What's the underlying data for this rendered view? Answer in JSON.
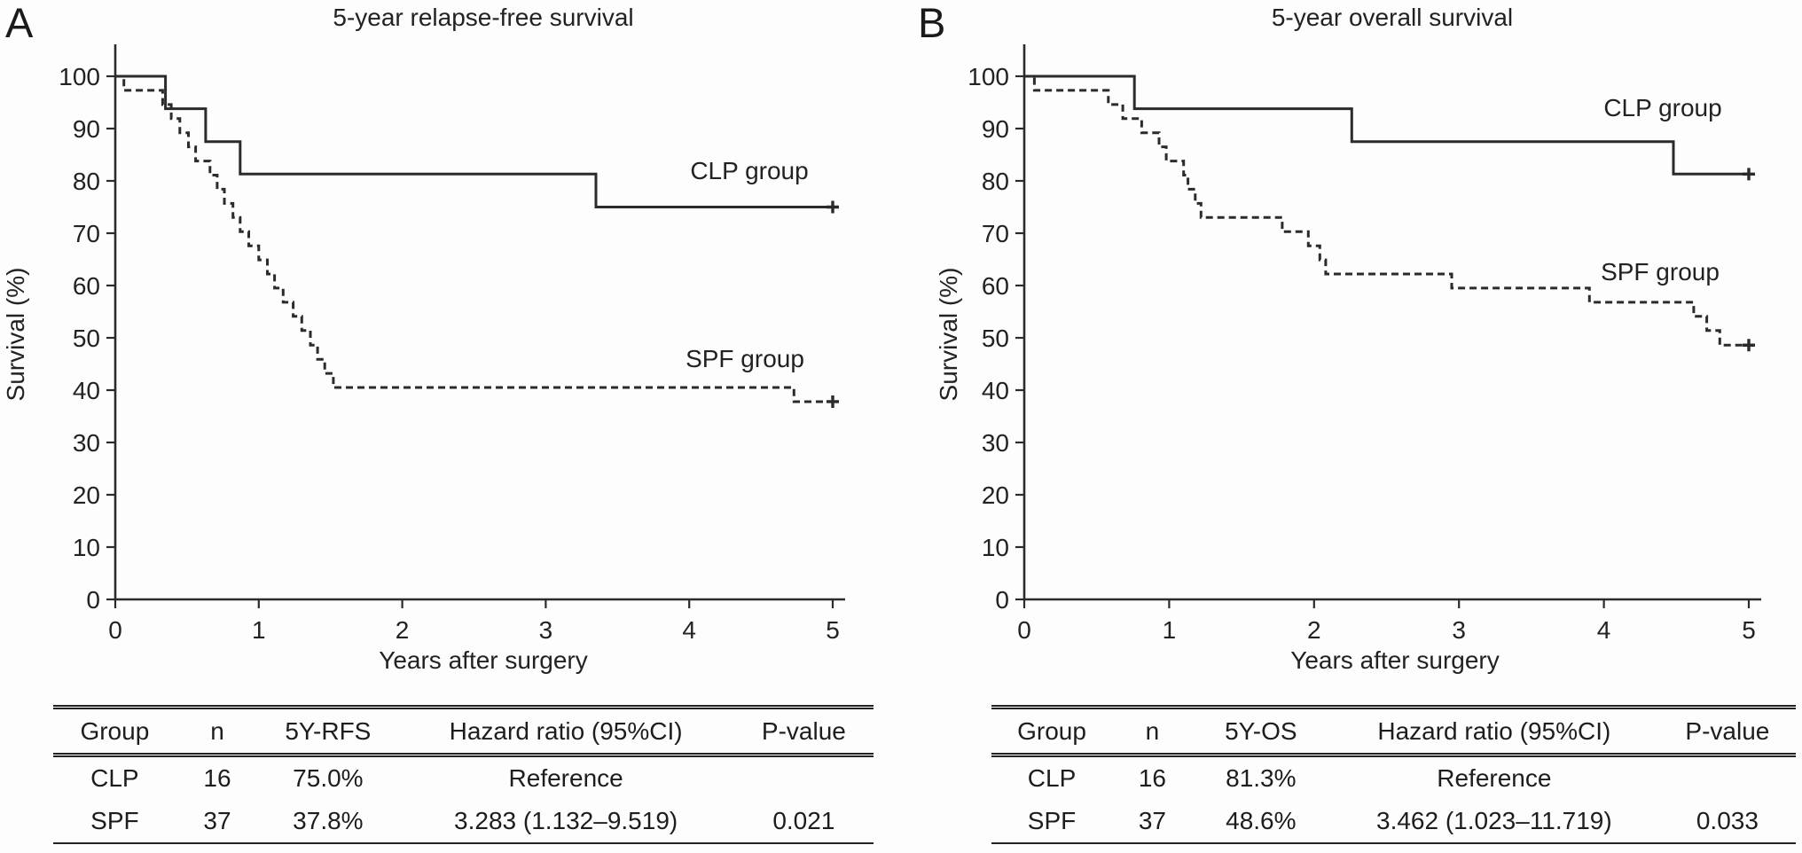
{
  "chart_data": [
    {
      "type": "line",
      "subtype": "kaplan-meier-step",
      "panel_letter": "A",
      "title": "5-year relapse-free survival",
      "xlabel": "Years after surgery",
      "ylabel": "Survival (%)",
      "xlim": [
        0,
        5
      ],
      "ylim": [
        0,
        100
      ],
      "xticks": [
        0,
        1,
        2,
        3,
        4,
        5
      ],
      "yticks": [
        0,
        10,
        20,
        30,
        40,
        50,
        60,
        70,
        80,
        90,
        100
      ],
      "grid": false,
      "legend_position": "on-curve-right",
      "line_color": "#2b2b2b",
      "series": [
        {
          "label": "CLP group",
          "style": "solid",
          "start_value": 100,
          "drops": [
            [
              0.35,
              93.8
            ],
            [
              0.63,
              87.5
            ],
            [
              0.87,
              81.3
            ],
            [
              3.35,
              75.0
            ]
          ],
          "end_x": 5.0,
          "end_value": 75.0,
          "censor_at_end": true
        },
        {
          "label": "SPF group",
          "style": "dashed",
          "start_value": 100,
          "drops": [
            [
              0.06,
              97.3
            ],
            [
              0.33,
              94.6
            ],
            [
              0.39,
              91.9
            ],
            [
              0.45,
              89.2
            ],
            [
              0.51,
              86.5
            ],
            [
              0.56,
              83.8
            ],
            [
              0.66,
              81.1
            ],
            [
              0.71,
              78.4
            ],
            [
              0.76,
              75.7
            ],
            [
              0.82,
              73.0
            ],
            [
              0.87,
              70.3
            ],
            [
              0.93,
              67.6
            ],
            [
              1.0,
              64.9
            ],
            [
              1.06,
              62.2
            ],
            [
              1.11,
              59.5
            ],
            [
              1.17,
              56.8
            ],
            [
              1.24,
              54.1
            ],
            [
              1.3,
              51.4
            ],
            [
              1.36,
              48.6
            ],
            [
              1.41,
              45.9
            ],
            [
              1.46,
              43.2
            ],
            [
              1.52,
              40.5
            ],
            [
              4.73,
              37.8
            ]
          ],
          "end_x": 5.0,
          "end_value": 37.8,
          "censor_at_end": true
        }
      ],
      "table": {
        "headers": [
          "Group",
          "n",
          "5Y-RFS",
          "Hazard ratio (95%CI)",
          "P-value"
        ],
        "rows": [
          [
            "CLP",
            "16",
            "75.0%",
            "Reference",
            ""
          ],
          [
            "SPF",
            "37",
            "37.8%",
            "3.283 (1.132–9.519)",
            "0.021"
          ]
        ]
      }
    },
    {
      "type": "line",
      "subtype": "kaplan-meier-step",
      "panel_letter": "B",
      "title": "5-year overall survival",
      "xlabel": "Years after surgery",
      "ylabel": "Survival (%)",
      "xlim": [
        0,
        5
      ],
      "ylim": [
        0,
        100
      ],
      "xticks": [
        0,
        1,
        2,
        3,
        4,
        5
      ],
      "yticks": [
        0,
        10,
        20,
        30,
        40,
        50,
        60,
        70,
        80,
        90,
        100
      ],
      "grid": false,
      "legend_position": "on-curve-right",
      "line_color": "#2b2b2b",
      "series": [
        {
          "label": "CLP group",
          "style": "solid",
          "start_value": 100,
          "drops": [
            [
              0.76,
              93.8
            ],
            [
              2.26,
              87.5
            ],
            [
              4.48,
              81.3
            ]
          ],
          "end_x": 5.0,
          "end_value": 81.3,
          "censor_at_end": true
        },
        {
          "label": "SPF group",
          "style": "dashed",
          "start_value": 100,
          "drops": [
            [
              0.07,
              97.3
            ],
            [
              0.58,
              94.6
            ],
            [
              0.68,
              91.9
            ],
            [
              0.81,
              89.2
            ],
            [
              0.93,
              86.5
            ],
            [
              0.98,
              83.8
            ],
            [
              1.1,
              81.1
            ],
            [
              1.13,
              78.4
            ],
            [
              1.18,
              75.7
            ],
            [
              1.22,
              73.0
            ],
            [
              1.78,
              70.3
            ],
            [
              1.96,
              67.6
            ],
            [
              2.04,
              64.9
            ],
            [
              2.08,
              62.2
            ],
            [
              2.95,
              59.5
            ],
            [
              3.9,
              56.8
            ],
            [
              4.62,
              54.1
            ],
            [
              4.71,
              51.4
            ],
            [
              4.8,
              48.6
            ]
          ],
          "end_x": 5.0,
          "end_value": 48.6,
          "censor_at_end": true
        }
      ],
      "table": {
        "headers": [
          "Group",
          "n",
          "5Y-OS",
          "Hazard ratio (95%CI)",
          "P-value"
        ],
        "rows": [
          [
            "CLP",
            "16",
            "81.3%",
            "Reference",
            ""
          ],
          [
            "SPF",
            "37",
            "48.6%",
            "3.462 (1.023–11.719)",
            "0.033"
          ]
        ]
      }
    }
  ]
}
